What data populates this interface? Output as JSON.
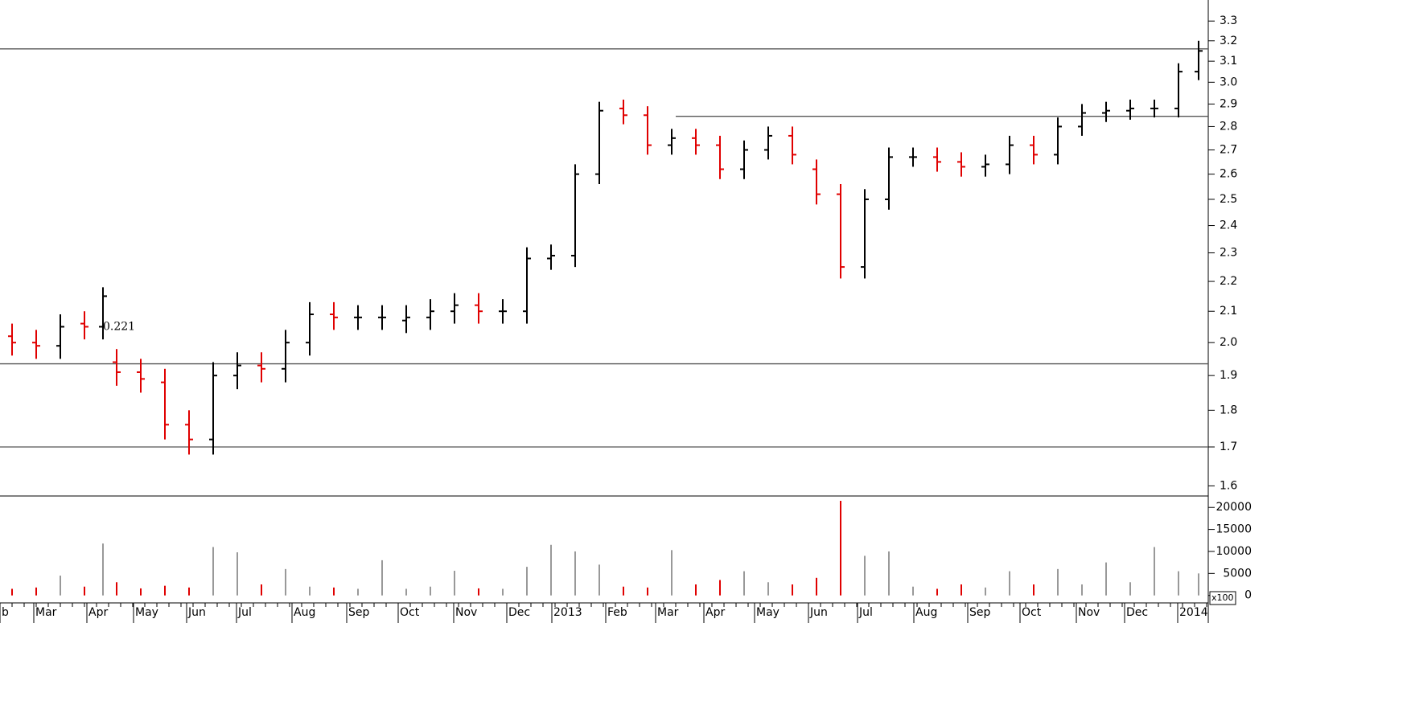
{
  "chart_data": [
    {
      "type": "ohlc",
      "log_scale": true,
      "up_color": "#000000",
      "down_color": "#e00000",
      "xlim": [
        0,
        1502
      ],
      "ylim": [
        1.575,
        3.41
      ],
      "yticks": [
        1.6,
        1.7,
        1.8,
        1.9,
        {
          "value": 2,
          "label": "2.0"
        },
        2.1,
        2.2,
        2.3,
        2.4,
        2.5,
        2.6,
        2.7,
        2.8,
        2.9,
        {
          "value": 3,
          "label": "3.0"
        },
        3.1,
        3.2,
        3.3
      ],
      "xticks": [
        {
          "value": 0,
          "label": "b"
        },
        {
          "value": 42,
          "label": "Mar"
        },
        {
          "value": 108,
          "label": "Apr"
        },
        {
          "value": 166,
          "label": "May"
        },
        {
          "value": 232,
          "label": "Jun"
        },
        {
          "value": 294,
          "label": "Jul"
        },
        {
          "value": 363,
          "label": "Aug"
        },
        {
          "value": 431,
          "label": "Sep"
        },
        {
          "value": 495,
          "label": "Oct"
        },
        {
          "value": 564,
          "label": "Nov"
        },
        {
          "value": 630,
          "label": "Dec"
        },
        {
          "value": 686,
          "label": "2013"
        },
        {
          "value": 753,
          "label": "Feb"
        },
        {
          "value": 815,
          "label": "Mar"
        },
        {
          "value": 875,
          "label": "Apr"
        },
        {
          "value": 938,
          "label": "May"
        },
        {
          "value": 1005,
          "label": "Jun"
        },
        {
          "value": 1066,
          "label": "Jul"
        },
        {
          "value": 1136,
          "label": "Aug"
        },
        {
          "value": 1203,
          "label": "Sep"
        },
        {
          "value": 1268,
          "label": "Oct"
        },
        {
          "value": 1338,
          "label": "Nov"
        },
        {
          "value": 1398,
          "label": "Dec"
        },
        {
          "value": 1464,
          "label": "2014"
        }
      ],
      "x": [
        15,
        45,
        75,
        105,
        128,
        145,
        175,
        205,
        235,
        265,
        295,
        325,
        355,
        385,
        415,
        445,
        475,
        505,
        535,
        565,
        595,
        625,
        655,
        685,
        715,
        745,
        775,
        805,
        835,
        865,
        895,
        925,
        955,
        985,
        1015,
        1045,
        1075,
        1105,
        1135,
        1165,
        1195,
        1225,
        1255,
        1285,
        1315,
        1345,
        1375,
        1405,
        1435,
        1465,
        1490
      ],
      "open": [
        2.02,
        2.0,
        1.99,
        2.06,
        2.05,
        1.94,
        1.91,
        1.88,
        1.76,
        1.72,
        1.9,
        1.93,
        1.92,
        2.0,
        2.09,
        2.08,
        2.08,
        2.07,
        2.08,
        2.1,
        2.12,
        2.1,
        2.1,
        2.28,
        2.29,
        2.6,
        2.88,
        2.85,
        2.72,
        2.75,
        2.72,
        2.62,
        2.7,
        2.76,
        2.62,
        2.52,
        2.25,
        2.5,
        2.67,
        2.67,
        2.65,
        2.63,
        2.64,
        2.72,
        2.68,
        2.8,
        2.86,
        2.87,
        2.88,
        2.88,
        3.05
      ],
      "high": [
        2.06,
        2.04,
        2.09,
        2.1,
        2.18,
        1.98,
        1.95,
        1.92,
        1.8,
        1.94,
        1.97,
        1.97,
        2.04,
        2.13,
        2.13,
        2.12,
        2.12,
        2.12,
        2.14,
        2.16,
        2.16,
        2.14,
        2.32,
        2.33,
        2.64,
        2.91,
        2.92,
        2.89,
        2.79,
        2.79,
        2.76,
        2.74,
        2.8,
        2.8,
        2.66,
        2.56,
        2.54,
        2.71,
        2.71,
        2.71,
        2.69,
        2.68,
        2.76,
        2.76,
        2.84,
        2.9,
        2.91,
        2.92,
        2.92,
        3.09,
        3.2
      ],
      "low": [
        1.96,
        1.95,
        1.95,
        2.01,
        2.01,
        1.87,
        1.85,
        1.72,
        1.68,
        1.68,
        1.86,
        1.88,
        1.88,
        1.96,
        2.04,
        2.04,
        2.04,
        2.03,
        2.04,
        2.06,
        2.06,
        2.06,
        2.06,
        2.24,
        2.25,
        2.56,
        2.81,
        2.68,
        2.68,
        2.68,
        2.58,
        2.58,
        2.66,
        2.64,
        2.48,
        2.21,
        2.21,
        2.46,
        2.63,
        2.61,
        2.59,
        2.59,
        2.6,
        2.64,
        2.64,
        2.76,
        2.82,
        2.83,
        2.84,
        2.84,
        3.01
      ],
      "close": [
        2.0,
        1.99,
        2.05,
        2.05,
        2.15,
        1.91,
        1.89,
        1.76,
        1.72,
        1.9,
        1.93,
        1.92,
        2.0,
        2.09,
        2.08,
        2.08,
        2.08,
        2.08,
        2.1,
        2.12,
        2.1,
        2.1,
        2.28,
        2.29,
        2.6,
        2.87,
        2.85,
        2.72,
        2.75,
        2.72,
        2.62,
        2.7,
        2.76,
        2.68,
        2.52,
        2.25,
        2.5,
        2.67,
        2.67,
        2.65,
        2.63,
        2.64,
        2.72,
        2.68,
        2.8,
        2.86,
        2.87,
        2.88,
        2.88,
        3.05,
        3.15
      ],
      "lines": [
        {
          "value": 3.16,
          "x": [
            0,
            1502
          ]
        },
        {
          "value": 2.845,
          "x": [
            840,
            1502
          ]
        },
        {
          "value": 1.935,
          "x": [
            0,
            1502
          ]
        },
        {
          "value": 1.7,
          "x": [
            0,
            1502
          ]
        }
      ],
      "annotation": {
        "text": "0.221",
        "x": 128,
        "y": 2.05
      }
    },
    {
      "type": "bar",
      "unit_label": "x100",
      "ylim": [
        -1700,
        22600
      ],
      "yticks": [
        0,
        5000,
        10000,
        15000,
        20000
      ],
      "up_color": "#999999",
      "down_color": "#e00000",
      "values": [
        1500,
        1800,
        4500,
        2000,
        11800,
        3000,
        1600,
        2200,
        1800,
        11000,
        9800,
        2500,
        6000,
        2000,
        1800,
        1500,
        8000,
        1500,
        2000,
        5600,
        1600,
        1500,
        6500,
        11500,
        10000,
        7000,
        2000,
        1800,
        10300,
        2500,
        3500,
        5500,
        3000,
        2500,
        4000,
        21500,
        9000,
        10000,
        2000,
        1500,
        2500,
        1800,
        5500,
        2500,
        6000,
        2500,
        7500,
        3000,
        11000,
        5500,
        5000
      ]
    }
  ]
}
